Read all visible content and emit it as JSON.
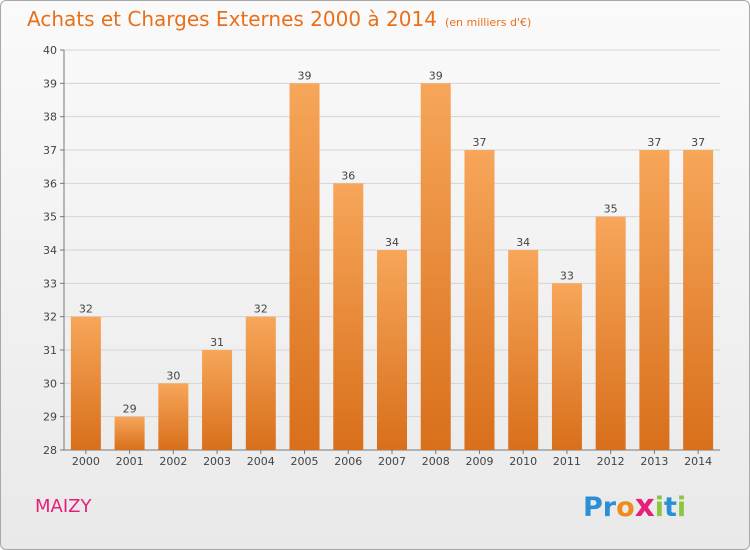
{
  "header": {
    "title": "Achats et Charges Externes 2000 à 2014",
    "unit": "(en milliers d'€)"
  },
  "footer": {
    "commune": "MAIZY",
    "brand_letters": [
      {
        "char": "P",
        "color": "#2a8fd4"
      },
      {
        "char": "r",
        "color": "#2a8fd4"
      },
      {
        "char": "o",
        "color": "#f08a1c"
      },
      {
        "char": "x",
        "color": "#e6207a"
      },
      {
        "char": "i",
        "color": "#8cc63f"
      },
      {
        "char": "t",
        "color": "#2a8fd4"
      },
      {
        "char": "i",
        "color": "#8cc63f"
      }
    ]
  },
  "colors": {
    "title": "#e8701a",
    "bar_top": "#f7a65a",
    "bar_bottom": "#d86f1b",
    "grid": "#d4d4d4",
    "commune": "#e6207a"
  },
  "chart_data": {
    "type": "bar",
    "categories": [
      "2000",
      "2001",
      "2002",
      "2003",
      "2004",
      "2005",
      "2006",
      "2007",
      "2008",
      "2009",
      "2010",
      "2011",
      "2012",
      "2013",
      "2014"
    ],
    "values": [
      32,
      29,
      30,
      31,
      32,
      39,
      36,
      34,
      39,
      37,
      34,
      33,
      35,
      37,
      37
    ],
    "ylim": [
      28,
      40
    ],
    "yticks": [
      28,
      29,
      30,
      31,
      32,
      33,
      34,
      35,
      36,
      37,
      38,
      39,
      40
    ],
    "grid": true,
    "data_labels": true
  }
}
